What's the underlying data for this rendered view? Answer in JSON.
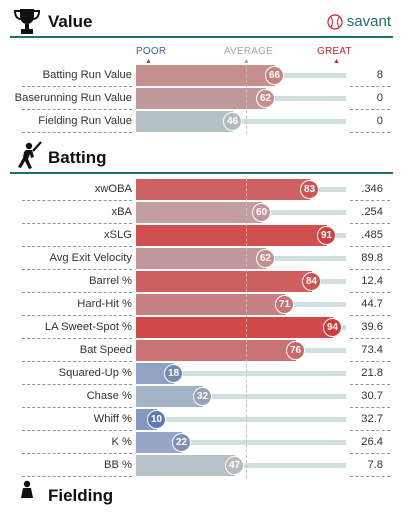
{
  "brand": {
    "name": "savant"
  },
  "scale": {
    "poor": "POOR",
    "average": "AVERAGE",
    "great": "GREAT",
    "poor_color": "#3d5ea8",
    "average_color": "#a0a8ab",
    "great_color": "#c8252c"
  },
  "value": {
    "title": "Value",
    "icon": "trophy-icon",
    "rows": [
      {
        "label": "Batting Run Value",
        "percentile": 66,
        "value": "8"
      },
      {
        "label": "Baserunning Run Value",
        "percentile": 62,
        "value": "0"
      },
      {
        "label": "Fielding Run Value",
        "percentile": 46,
        "value": "0"
      }
    ]
  },
  "batting": {
    "title": "Batting",
    "icon": "batter-icon",
    "rows": [
      {
        "label": "xwOBA",
        "percentile": 83,
        "value": ".346"
      },
      {
        "label": "xBA",
        "percentile": 60,
        "value": ".254"
      },
      {
        "label": "xSLG",
        "percentile": 91,
        "value": ".485"
      },
      {
        "label": "Avg Exit Velocity",
        "percentile": 62,
        "value": "89.8"
      },
      {
        "label": "Barrel %",
        "percentile": 84,
        "value": "12.4"
      },
      {
        "label": "Hard-Hit %",
        "percentile": 71,
        "value": "44.7"
      },
      {
        "label": "LA Sweet-Spot %",
        "percentile": 94,
        "value": "39.6"
      },
      {
        "label": "Bat Speed",
        "percentile": 76,
        "value": "73.4"
      },
      {
        "label": "Squared-Up %",
        "percentile": 18,
        "value": "21.8"
      },
      {
        "label": "Chase %",
        "percentile": 32,
        "value": "30.7"
      },
      {
        "label": "Whiff %",
        "percentile": 10,
        "value": "32.7"
      },
      {
        "label": "K %",
        "percentile": 22,
        "value": "26.4"
      },
      {
        "label": "BB %",
        "percentile": 47,
        "value": "7.8"
      }
    ]
  },
  "fielding": {
    "title": "Fielding",
    "icon": "fielder-icon"
  }
}
